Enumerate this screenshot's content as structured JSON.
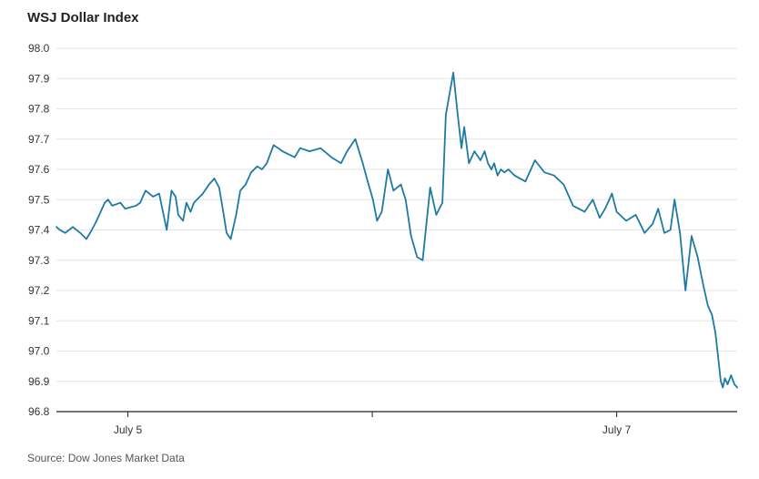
{
  "title": "WSJ Dollar Index",
  "source": "Source: Dow Jones Market Data",
  "colors": {
    "line": "#1f7aa3",
    "grid": "#e6e6e6",
    "axis": "#222222",
    "text": "#333333"
  },
  "chart_data": {
    "type": "line",
    "title": "WSJ Dollar Index",
    "xlabel": "",
    "ylabel": "",
    "ylim": [
      96.8,
      98.0
    ],
    "yticks": [
      "98.0",
      "97.9",
      "97.8",
      "97.7",
      "97.6",
      "97.5",
      "97.4",
      "97.3",
      "97.2",
      "97.1",
      "97.0",
      "96.9",
      "96.8"
    ],
    "xlim": [
      0,
      100
    ],
    "xticks": [
      {
        "x": 10.5,
        "label": "July 5"
      },
      {
        "x": 46.4,
        "label": ""
      },
      {
        "x": 82.3,
        "label": "July 7"
      }
    ],
    "grid": true,
    "x": [
      0,
      0.5,
      1.3,
      2.4,
      3.5,
      4.4,
      5.2,
      5.9,
      7.1,
      7.6,
      8.2,
      9.4,
      10.1,
      11.7,
      12.3,
      13.1,
      14.2,
      15.1,
      16.2,
      16.9,
      17.5,
      17.9,
      18.6,
      19.1,
      19.7,
      20.2,
      21.5,
      22.4,
      23.2,
      23.9,
      24.5,
      25.0,
      25.6,
      26.4,
      27.0,
      27.8,
      28.6,
      29.5,
      30.2,
      30.9,
      31.9,
      32.6,
      33.2,
      34.1,
      35.0,
      35.8,
      37.2,
      38.8,
      40.4,
      41.8,
      42.7,
      43.9,
      45.0,
      45.6,
      46.5,
      47.1,
      47.8,
      48.7,
      49.5,
      50.6,
      51.3,
      52.1,
      53.0,
      53.8,
      54.9,
      55.8,
      56.7,
      57.2,
      58.3,
      58.9,
      59.5,
      59.9,
      60.6,
      61.4,
      62.3,
      62.9,
      63.4,
      63.9,
      64.3,
      64.8,
      65.3,
      65.8,
      66.4,
      67.3,
      68.9,
      70.3,
      71.7,
      73.1,
      74.5,
      75.9,
      77.6,
      78.2,
      78.8,
      79.8,
      80.6,
      81.6,
      82.3,
      83.7,
      85.1,
      86.4,
      87.6,
      88.4,
      89.3,
      90.2,
      90.8,
      91.6,
      92.4,
      93.3,
      94.2,
      95.0,
      95.7,
      96.3,
      96.8,
      97.2,
      97.6,
      97.9,
      98.2,
      98.6,
      99.1,
      99.6,
      100
    ],
    "series": [
      {
        "values": [
          97.41,
          97.4,
          97.39,
          97.41,
          97.39,
          97.37,
          97.4,
          97.43,
          97.49,
          97.5,
          97.48,
          97.49,
          97.47,
          97.48,
          97.49,
          97.53,
          97.51,
          97.52,
          97.4,
          97.53,
          97.51,
          97.45,
          97.43,
          97.49,
          97.46,
          97.49,
          97.52,
          97.55,
          97.57,
          97.54,
          97.46,
          97.39,
          97.37,
          97.45,
          97.53,
          97.55,
          97.59,
          97.61,
          97.6,
          97.62,
          97.68,
          97.67,
          97.66,
          97.65,
          97.64,
          97.67,
          97.66,
          97.67,
          97.64,
          97.62,
          97.66,
          97.7,
          97.62,
          97.57,
          97.5,
          97.43,
          97.46,
          97.6,
          97.53,
          97.55,
          97.5,
          97.38,
          97.31,
          97.3,
          97.54,
          97.45,
          97.49,
          97.78,
          97.92,
          97.79,
          97.67,
          97.74,
          97.62,
          97.66,
          97.63,
          97.66,
          97.62,
          97.6,
          97.62,
          97.58,
          97.6,
          97.59,
          97.6,
          97.58,
          97.56,
          97.63,
          97.59,
          97.58,
          97.55,
          97.48,
          97.46,
          97.48,
          97.5,
          97.44,
          97.47,
          97.52,
          97.46,
          97.43,
          97.45,
          97.39,
          97.42,
          97.47,
          97.39,
          97.4,
          97.5,
          97.39,
          97.2,
          97.38,
          97.31,
          97.22,
          97.15,
          97.12,
          97.06,
          96.98,
          96.9,
          96.88,
          96.91,
          96.89,
          96.92,
          96.89,
          96.88
        ]
      }
    ]
  }
}
